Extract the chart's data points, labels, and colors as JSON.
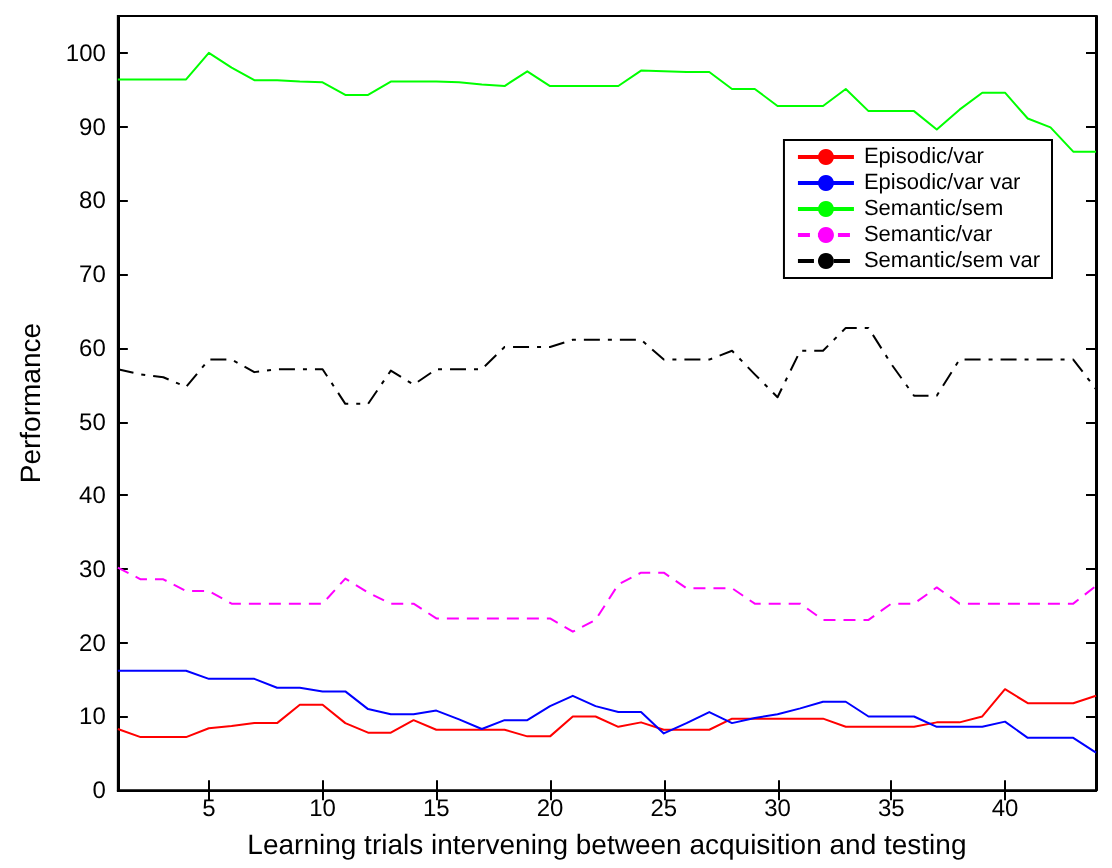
{
  "chart_data": {
    "type": "line",
    "xlabel": "Learning trials intervening between acquisition and testing",
    "ylabel": "Performance",
    "x": [
      1,
      2,
      3,
      4,
      5,
      6,
      7,
      8,
      9,
      10,
      11,
      12,
      13,
      14,
      15,
      16,
      17,
      18,
      19,
      20,
      21,
      22,
      23,
      24,
      25,
      26,
      27,
      28,
      29,
      30,
      31,
      32,
      33,
      34,
      35,
      36,
      37,
      38,
      39,
      40,
      41,
      42,
      43,
      44
    ],
    "xlim": [
      1,
      44
    ],
    "xticks": [
      5,
      10,
      15,
      20,
      25,
      30,
      35,
      40
    ],
    "ylim": [
      0,
      105
    ],
    "yticks": [
      0,
      10,
      20,
      30,
      40,
      50,
      60,
      70,
      80,
      90,
      100
    ],
    "grid": false,
    "legend": "top right",
    "marker": "none",
    "series": [
      {
        "name": "Episodic/var",
        "color": "#ff0000",
        "line_style": "solid",
        "values": [
          8.3,
          7.2,
          7.2,
          7.2,
          8.4,
          8.7,
          9.1,
          9.1,
          11.6,
          11.6,
          9.1,
          7.8,
          7.8,
          9.5,
          8.2,
          8.2,
          8.2,
          8.2,
          7.3,
          7.3,
          10,
          10,
          8.6,
          9.2,
          8.2,
          8.2,
          8.2,
          9.7,
          9.7,
          9.7,
          9.7,
          9.7,
          8.6,
          8.6,
          8.6,
          8.6,
          9.2,
          9.2,
          10,
          13.7,
          11.8,
          11.8,
          11.8,
          12.8
        ]
      },
      {
        "name": "Episodic/var var",
        "color": "#0000ff",
        "line_style": "solid",
        "values": [
          16.2,
          16.2,
          16.2,
          16.2,
          15.1,
          15.1,
          15.1,
          13.9,
          13.9,
          13.4,
          13.4,
          11,
          10.3,
          10.3,
          10.8,
          9.6,
          8.3,
          9.5,
          9.5,
          11.4,
          12.8,
          11.4,
          10.6,
          10.6,
          7.7,
          9.1,
          10.6,
          9.1,
          9.8,
          10.3,
          11.1,
          12,
          12,
          10,
          10,
          10,
          8.6,
          8.6,
          8.6,
          9.3,
          7.1,
          7.1,
          7.1,
          5.1
        ]
      },
      {
        "name": "Semantic/sem",
        "color": "#00ff00",
        "line_style": "solid",
        "values": [
          96.4,
          96.4,
          96.4,
          96.4,
          100,
          98,
          96.3,
          96.3,
          96.1,
          96,
          94.3,
          94.3,
          96.1,
          96.1,
          96.1,
          96,
          95.7,
          95.5,
          97.5,
          95.5,
          95.5,
          95.5,
          95.5,
          97.6,
          97.5,
          97.4,
          97.4,
          95.1,
          95.1,
          92.8,
          92.8,
          92.8,
          95.1,
          92.1,
          92.1,
          92.1,
          89.6,
          92.3,
          94.6,
          94.6,
          91.1,
          89.9,
          86.6,
          86.6
        ]
      },
      {
        "name": "Semantic/var",
        "color": "#ff00ff",
        "line_style": "dashed",
        "values": [
          30.2,
          28.6,
          28.6,
          27,
          27,
          25.3,
          25.3,
          25.3,
          25.3,
          25.3,
          28.7,
          26.8,
          25.3,
          25.3,
          23.3,
          23.3,
          23.3,
          23.3,
          23.3,
          23.3,
          21.5,
          23.1,
          27.9,
          29.5,
          29.5,
          27.4,
          27.4,
          27.4,
          25.3,
          25.3,
          25.3,
          23.1,
          23.1,
          23.1,
          25.3,
          25.3,
          27.5,
          25.3,
          25.3,
          25.3,
          25.3,
          25.3,
          25.3,
          27.7
        ]
      },
      {
        "name": "Semantic/sem var",
        "color": "#000000",
        "line_style": "dashdot",
        "values": [
          57.1,
          56.4,
          56,
          54.7,
          58.4,
          58.4,
          56.7,
          57.1,
          57.1,
          57.1,
          52.4,
          52.4,
          56.9,
          55,
          57.1,
          57.1,
          57.1,
          60.1,
          60.1,
          60.1,
          61.1,
          61.1,
          61.1,
          61.1,
          58.4,
          58.4,
          58.4,
          59.6,
          56.4,
          53.3,
          59.6,
          59.6,
          62.7,
          62.7,
          57.8,
          53.5,
          53.5,
          58.4,
          58.4,
          58.4,
          58.4,
          58.4,
          58.4,
          54.4
        ]
      }
    ]
  }
}
